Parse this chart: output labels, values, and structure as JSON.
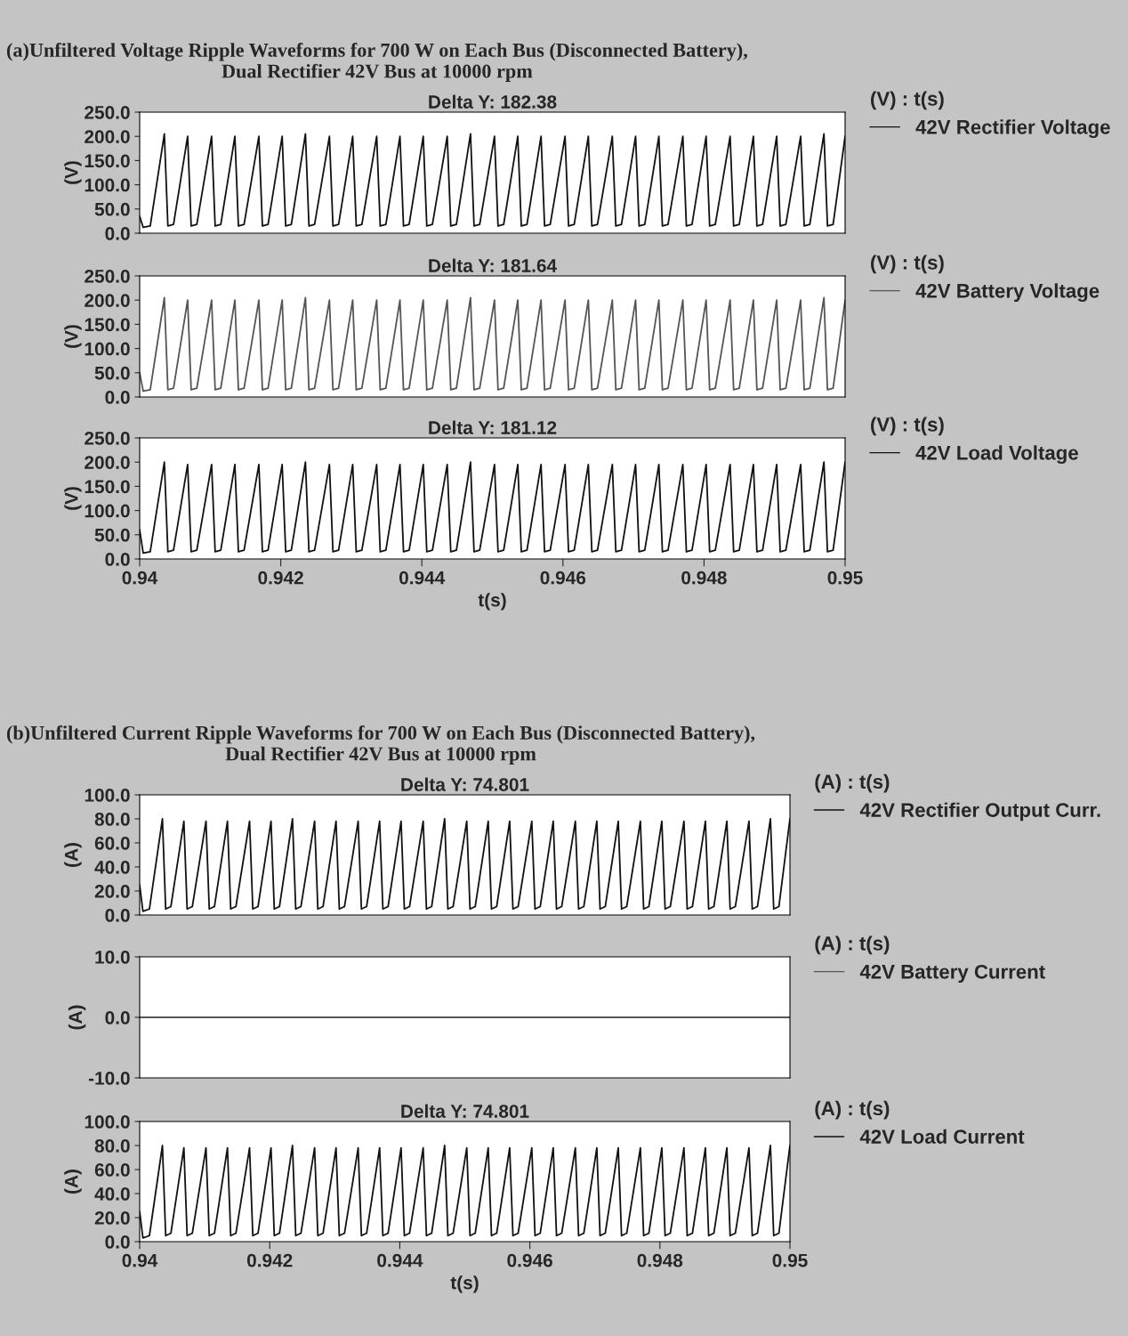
{
  "chart_data": [
    {
      "type": "line",
      "title": "(a)Unfiltered Voltage Ripple Waveforms for 700 W on Each Bus (Disconnected Battery),\nDual Rectifier 42V Bus at 10000 rpm",
      "subtitle": "Delta Y: 182.38",
      "ylabel": "(V)",
      "legend_title": "(V) : t(s)",
      "legend": "right",
      "tick_labels": "y",
      "x": [
        0.94,
        0.94005,
        0.94015,
        0.94035,
        0.9404,
        0.94048,
        0.94068,
        0.94073,
        0.94081,
        0.94102,
        0.94107,
        0.94115,
        0.94135,
        0.9414,
        0.94148,
        0.94169,
        0.94174,
        0.94182,
        0.94202,
        0.94207,
        0.94215,
        0.94235,
        0.9424,
        0.94248,
        0.94269,
        0.94274,
        0.94282,
        0.94302,
        0.94307,
        0.94315,
        0.94336,
        0.94341,
        0.94349,
        0.94369,
        0.94374,
        0.94382,
        0.94402,
        0.94407,
        0.94415,
        0.94436,
        0.94441,
        0.94449,
        0.94469,
        0.94474,
        0.94482,
        0.94503,
        0.94508,
        0.94516,
        0.94536,
        0.94541,
        0.94549,
        0.94569,
        0.94574,
        0.94582,
        0.94603,
        0.94608,
        0.94616,
        0.94636,
        0.94641,
        0.94649,
        0.9467,
        0.94675,
        0.94683,
        0.94703,
        0.94708,
        0.94716,
        0.94736,
        0.94741,
        0.94749,
        0.9477,
        0.94775,
        0.94783,
        0.94803,
        0.94808,
        0.94816,
        0.94837,
        0.94842,
        0.9485,
        0.9487,
        0.94875,
        0.94883,
        0.94903,
        0.94908,
        0.94916,
        0.94937,
        0.94942,
        0.9495,
        0.9497,
        0.94975,
        0.94983,
        0.95
      ],
      "series": [
        {
          "name": "42V Rectifier Voltage",
          "color": "#111111",
          "values": [
            35,
            12,
            15,
            205,
            15,
            18,
            200,
            15,
            18,
            200,
            15,
            18,
            200,
            15,
            18,
            200,
            15,
            18,
            200,
            15,
            18,
            205,
            15,
            18,
            200,
            15,
            18,
            200,
            15,
            18,
            200,
            15,
            18,
            200,
            15,
            18,
            200,
            15,
            18,
            200,
            15,
            18,
            205,
            15,
            18,
            200,
            15,
            18,
            200,
            15,
            18,
            200,
            15,
            18,
            200,
            15,
            18,
            200,
            15,
            18,
            200,
            15,
            18,
            200,
            15,
            18,
            200,
            15,
            18,
            200,
            15,
            18,
            200,
            15,
            18,
            200,
            15,
            18,
            200,
            15,
            18,
            200,
            15,
            18,
            200,
            15,
            18,
            205,
            15,
            18,
            200
          ]
        }
      ],
      "xlim": [
        0.94,
        0.95
      ],
      "xticks": [
        0.94,
        0.942,
        0.944,
        0.946,
        0.948,
        0.95
      ],
      "ylim": [
        0,
        250
      ],
      "yticks": [
        {
          "value": 0,
          "label": "0.0"
        },
        {
          "value": 50,
          "label": "50.0"
        },
        {
          "value": 100,
          "label": "100.0"
        },
        {
          "value": 150,
          "label": "150.0"
        },
        {
          "value": 200,
          "label": "200.0"
        },
        {
          "value": 250,
          "label": "250.0"
        }
      ]
    },
    {
      "type": "line",
      "subtitle": "Delta Y: 181.64",
      "ylabel": "(V)",
      "legend_title": "(V) : t(s)",
      "legend": "right",
      "tick_labels": "y",
      "x": [
        0.94,
        0.94005,
        0.94015,
        0.94035,
        0.9404,
        0.94048,
        0.94068,
        0.94073,
        0.94081,
        0.94102,
        0.94107,
        0.94115,
        0.94135,
        0.9414,
        0.94148,
        0.94169,
        0.94174,
        0.94182,
        0.94202,
        0.94207,
        0.94215,
        0.94235,
        0.9424,
        0.94248,
        0.94269,
        0.94274,
        0.94282,
        0.94302,
        0.94307,
        0.94315,
        0.94336,
        0.94341,
        0.94349,
        0.94369,
        0.94374,
        0.94382,
        0.94402,
        0.94407,
        0.94415,
        0.94436,
        0.94441,
        0.94449,
        0.94469,
        0.94474,
        0.94482,
        0.94503,
        0.94508,
        0.94516,
        0.94536,
        0.94541,
        0.94549,
        0.94569,
        0.94574,
        0.94582,
        0.94603,
        0.94608,
        0.94616,
        0.94636,
        0.94641,
        0.94649,
        0.9467,
        0.94675,
        0.94683,
        0.94703,
        0.94708,
        0.94716,
        0.94736,
        0.94741,
        0.94749,
        0.9477,
        0.94775,
        0.94783,
        0.94803,
        0.94808,
        0.94816,
        0.94837,
        0.94842,
        0.9485,
        0.9487,
        0.94875,
        0.94883,
        0.94903,
        0.94908,
        0.94916,
        0.94937,
        0.94942,
        0.9495,
        0.9497,
        0.94975,
        0.94983,
        0.95
      ],
      "series": [
        {
          "name": "42V Battery Voltage",
          "color": "#555555",
          "values": [
            50,
            12,
            15,
            205,
            15,
            18,
            200,
            15,
            18,
            200,
            15,
            18,
            200,
            15,
            18,
            200,
            15,
            18,
            200,
            15,
            18,
            205,
            15,
            18,
            200,
            15,
            18,
            200,
            15,
            18,
            200,
            15,
            18,
            200,
            15,
            18,
            200,
            15,
            18,
            200,
            15,
            18,
            205,
            15,
            18,
            200,
            15,
            18,
            200,
            15,
            18,
            200,
            15,
            18,
            200,
            15,
            18,
            200,
            15,
            18,
            200,
            15,
            18,
            200,
            15,
            18,
            200,
            15,
            18,
            200,
            15,
            18,
            200,
            15,
            18,
            200,
            15,
            18,
            200,
            15,
            18,
            200,
            15,
            18,
            200,
            15,
            18,
            205,
            15,
            18,
            200
          ]
        }
      ],
      "xlim": [
        0.94,
        0.95
      ],
      "xticks": [
        0.94,
        0.942,
        0.944,
        0.946,
        0.948,
        0.95
      ],
      "ylim": [
        0,
        250
      ],
      "yticks": [
        {
          "value": 0,
          "label": "0.0"
        },
        {
          "value": 50,
          "label": "50.0"
        },
        {
          "value": 100,
          "label": "100.0"
        },
        {
          "value": 150,
          "label": "150.0"
        },
        {
          "value": 200,
          "label": "200.0"
        },
        {
          "value": 250,
          "label": "250.0"
        }
      ]
    },
    {
      "type": "line",
      "subtitle": "Delta Y: 181.12",
      "xlabel": "t(s)",
      "ylabel": "(V)",
      "legend_title": "(V) : t(s)",
      "legend": "right",
      "x": [
        0.94,
        0.94005,
        0.94015,
        0.94035,
        0.9404,
        0.94048,
        0.94068,
        0.94073,
        0.94081,
        0.94102,
        0.94107,
        0.94115,
        0.94135,
        0.9414,
        0.94148,
        0.94169,
        0.94174,
        0.94182,
        0.94202,
        0.94207,
        0.94215,
        0.94235,
        0.9424,
        0.94248,
        0.94269,
        0.94274,
        0.94282,
        0.94302,
        0.94307,
        0.94315,
        0.94336,
        0.94341,
        0.94349,
        0.94369,
        0.94374,
        0.94382,
        0.94402,
        0.94407,
        0.94415,
        0.94436,
        0.94441,
        0.94449,
        0.94469,
        0.94474,
        0.94482,
        0.94503,
        0.94508,
        0.94516,
        0.94536,
        0.94541,
        0.94549,
        0.94569,
        0.94574,
        0.94582,
        0.94603,
        0.94608,
        0.94616,
        0.94636,
        0.94641,
        0.94649,
        0.9467,
        0.94675,
        0.94683,
        0.94703,
        0.94708,
        0.94716,
        0.94736,
        0.94741,
        0.94749,
        0.9477,
        0.94775,
        0.94783,
        0.94803,
        0.94808,
        0.94816,
        0.94837,
        0.94842,
        0.9485,
        0.9487,
        0.94875,
        0.94883,
        0.94903,
        0.94908,
        0.94916,
        0.94937,
        0.94942,
        0.9495,
        0.9497,
        0.94975,
        0.94983,
        0.95
      ],
      "series": [
        {
          "name": "42V Load Voltage",
          "color": "#111111",
          "values": [
            60,
            12,
            15,
            200,
            15,
            18,
            195,
            15,
            18,
            195,
            15,
            18,
            195,
            15,
            18,
            195,
            15,
            18,
            195,
            15,
            18,
            200,
            15,
            18,
            195,
            15,
            18,
            195,
            15,
            18,
            195,
            15,
            18,
            195,
            15,
            18,
            195,
            15,
            18,
            195,
            15,
            18,
            200,
            15,
            18,
            195,
            15,
            18,
            195,
            15,
            18,
            195,
            15,
            18,
            195,
            15,
            18,
            195,
            15,
            18,
            195,
            15,
            18,
            195,
            15,
            18,
            195,
            15,
            18,
            195,
            15,
            18,
            195,
            15,
            18,
            195,
            15,
            18,
            195,
            15,
            18,
            195,
            15,
            18,
            195,
            15,
            18,
            200,
            15,
            18,
            200
          ]
        }
      ],
      "xlim": [
        0.94,
        0.95
      ],
      "xticks": [
        0.94,
        0.942,
        0.944,
        0.946,
        0.948,
        0.95
      ],
      "ylim": [
        0,
        250
      ],
      "yticks": [
        {
          "value": 0,
          "label": "0.0"
        },
        {
          "value": 50,
          "label": "50.0"
        },
        {
          "value": 100,
          "label": "100.0"
        },
        {
          "value": 150,
          "label": "150.0"
        },
        {
          "value": 200,
          "label": "200.0"
        },
        {
          "value": 250,
          "label": "250.0"
        }
      ]
    },
    {
      "type": "line",
      "title": "(b)Unfiltered Current Ripple Waveforms for 700 W on Each Bus (Disconnected Battery),\nDual Rectifier 42V Bus at 10000 rpm",
      "subtitle": "Delta Y: 74.801",
      "ylabel": "(A)",
      "legend_title": "(A) : t(s)",
      "legend": "right",
      "tick_labels": "y",
      "x": [
        0.94,
        0.94005,
        0.94015,
        0.94035,
        0.9404,
        0.94048,
        0.94068,
        0.94073,
        0.94081,
        0.94102,
        0.94107,
        0.94115,
        0.94135,
        0.9414,
        0.94148,
        0.94169,
        0.94174,
        0.94182,
        0.94202,
        0.94207,
        0.94215,
        0.94235,
        0.9424,
        0.94248,
        0.94269,
        0.94274,
        0.94282,
        0.94302,
        0.94307,
        0.94315,
        0.94336,
        0.94341,
        0.94349,
        0.94369,
        0.94374,
        0.94382,
        0.94402,
        0.94407,
        0.94415,
        0.94436,
        0.94441,
        0.94449,
        0.94469,
        0.94474,
        0.94482,
        0.94503,
        0.94508,
        0.94516,
        0.94536,
        0.94541,
        0.94549,
        0.94569,
        0.94574,
        0.94582,
        0.94603,
        0.94608,
        0.94616,
        0.94636,
        0.94641,
        0.94649,
        0.9467,
        0.94675,
        0.94683,
        0.94703,
        0.94708,
        0.94716,
        0.94736,
        0.94741,
        0.94749,
        0.9477,
        0.94775,
        0.94783,
        0.94803,
        0.94808,
        0.94816,
        0.94837,
        0.94842,
        0.9485,
        0.9487,
        0.94875,
        0.94883,
        0.94903,
        0.94908,
        0.94916,
        0.94937,
        0.94942,
        0.9495,
        0.9497,
        0.94975,
        0.94983,
        0.95
      ],
      "series": [
        {
          "name": "42V Rectifier Output Curr.",
          "color": "#111111",
          "values": [
            25,
            3,
            5,
            80,
            5,
            7,
            78,
            5,
            7,
            78,
            5,
            7,
            78,
            5,
            7,
            78,
            5,
            7,
            78,
            5,
            7,
            80,
            5,
            7,
            78,
            5,
            7,
            78,
            5,
            7,
            78,
            5,
            7,
            78,
            5,
            7,
            78,
            5,
            7,
            78,
            5,
            7,
            80,
            5,
            7,
            78,
            5,
            7,
            78,
            5,
            7,
            78,
            5,
            7,
            78,
            5,
            7,
            78,
            5,
            7,
            78,
            5,
            7,
            78,
            5,
            7,
            78,
            5,
            7,
            78,
            5,
            7,
            78,
            5,
            7,
            78,
            5,
            7,
            78,
            5,
            7,
            78,
            5,
            7,
            78,
            5,
            7,
            80,
            5,
            7,
            80
          ]
        }
      ],
      "xlim": [
        0.94,
        0.95
      ],
      "xticks": [
        0.94,
        0.942,
        0.944,
        0.946,
        0.948,
        0.95
      ],
      "ylim": [
        0,
        100
      ],
      "yticks": [
        {
          "value": 0,
          "label": "0.0"
        },
        {
          "value": 20,
          "label": "20.0"
        },
        {
          "value": 40,
          "label": "40.0"
        },
        {
          "value": 60,
          "label": "60.0"
        },
        {
          "value": 80,
          "label": "80.0"
        },
        {
          "value": 100,
          "label": "100.0"
        }
      ]
    },
    {
      "type": "line",
      "ylabel": "(A)",
      "legend_title": "(A) : t(s)",
      "legend": "right",
      "tick_labels": "y",
      "x": [
        0.94,
        0.95
      ],
      "series": [
        {
          "name": "42V Battery Current",
          "color": "#555555",
          "values": [
            0,
            0
          ]
        }
      ],
      "xlim": [
        0.94,
        0.95
      ],
      "xticks": [
        0.94,
        0.942,
        0.944,
        0.946,
        0.948,
        0.95
      ],
      "ylim": [
        -10,
        10
      ],
      "yticks": [
        {
          "value": -10,
          "label": "-10.0"
        },
        {
          "value": 0,
          "label": "0.0"
        },
        {
          "value": 10,
          "label": "10.0"
        }
      ]
    },
    {
      "type": "line",
      "subtitle": "Delta Y: 74.801",
      "xlabel": "t(s)",
      "ylabel": "(A)",
      "legend_title": "(A) : t(s)",
      "legend": "right",
      "x": [
        0.94,
        0.94005,
        0.94015,
        0.94035,
        0.9404,
        0.94048,
        0.94068,
        0.94073,
        0.94081,
        0.94102,
        0.94107,
        0.94115,
        0.94135,
        0.9414,
        0.94148,
        0.94169,
        0.94174,
        0.94182,
        0.94202,
        0.94207,
        0.94215,
        0.94235,
        0.9424,
        0.94248,
        0.94269,
        0.94274,
        0.94282,
        0.94302,
        0.94307,
        0.94315,
        0.94336,
        0.94341,
        0.94349,
        0.94369,
        0.94374,
        0.94382,
        0.94402,
        0.94407,
        0.94415,
        0.94436,
        0.94441,
        0.94449,
        0.94469,
        0.94474,
        0.94482,
        0.94503,
        0.94508,
        0.94516,
        0.94536,
        0.94541,
        0.94549,
        0.94569,
        0.94574,
        0.94582,
        0.94603,
        0.94608,
        0.94616,
        0.94636,
        0.94641,
        0.94649,
        0.9467,
        0.94675,
        0.94683,
        0.94703,
        0.94708,
        0.94716,
        0.94736,
        0.94741,
        0.94749,
        0.9477,
        0.94775,
        0.94783,
        0.94803,
        0.94808,
        0.94816,
        0.94837,
        0.94842,
        0.9485,
        0.9487,
        0.94875,
        0.94883,
        0.94903,
        0.94908,
        0.94916,
        0.94937,
        0.94942,
        0.9495,
        0.9497,
        0.94975,
        0.94983,
        0.95
      ],
      "series": [
        {
          "name": "42V Load Current",
          "color": "#111111",
          "values": [
            25,
            3,
            5,
            80,
            5,
            7,
            78,
            5,
            7,
            78,
            5,
            7,
            78,
            5,
            7,
            78,
            5,
            7,
            78,
            5,
            7,
            80,
            5,
            7,
            78,
            5,
            7,
            78,
            5,
            7,
            78,
            5,
            7,
            78,
            5,
            7,
            78,
            5,
            7,
            78,
            5,
            7,
            80,
            5,
            7,
            78,
            5,
            7,
            78,
            5,
            7,
            78,
            5,
            7,
            78,
            5,
            7,
            78,
            5,
            7,
            78,
            5,
            7,
            78,
            5,
            7,
            78,
            5,
            7,
            78,
            5,
            7,
            78,
            5,
            7,
            78,
            5,
            7,
            78,
            5,
            7,
            78,
            5,
            7,
            78,
            5,
            7,
            80,
            5,
            7,
            80
          ]
        }
      ],
      "xlim": [
        0.94,
        0.95
      ],
      "xticks": [
        0.94,
        0.942,
        0.944,
        0.946,
        0.948,
        0.95
      ],
      "ylim": [
        0,
        100
      ],
      "yticks": [
        {
          "value": 0,
          "label": "0.0"
        },
        {
          "value": 20,
          "label": "20.0"
        },
        {
          "value": 40,
          "label": "40.0"
        },
        {
          "value": 60,
          "label": "60.0"
        },
        {
          "value": 80,
          "label": "80.0"
        },
        {
          "value": 100,
          "label": "100.0"
        }
      ]
    }
  ]
}
